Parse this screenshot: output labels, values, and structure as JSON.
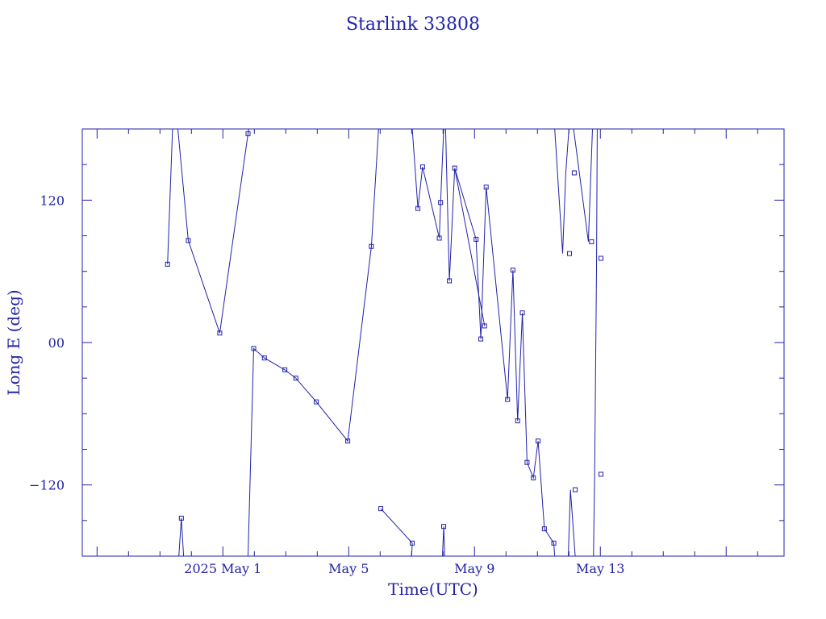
{
  "chart_data": {
    "type": "line",
    "title": "Starlink 33808",
    "xlabel": "Time(UTC)",
    "ylabel": "Long E (deg)",
    "xlim": [
      -4.47,
      17.84
    ],
    "ylim": [
      -180,
      180
    ],
    "x_unit": "days since 2025-05-01 00:00 UTC",
    "x_ticks": [
      {
        "x": 0,
        "label": "2025 May  1"
      },
      {
        "x": 4,
        "label": "May  5"
      },
      {
        "x": 8,
        "label": "May  9"
      },
      {
        "x": 12,
        "label": "May 13"
      }
    ],
    "y_ticks": [
      {
        "y": 120,
        "label": "120"
      },
      {
        "y": 0,
        "label": "00"
      },
      {
        "y": -120,
        "label": "−120"
      }
    ],
    "grid": false,
    "color": "#2222aa",
    "points": [
      [
        -1.76,
        66
      ],
      [
        -1.32,
        -148
      ],
      [
        -1.1,
        86
      ],
      [
        -0.1,
        8
      ],
      [
        0.8,
        176
      ],
      [
        0.98,
        -5
      ],
      [
        1.32,
        -13
      ],
      [
        1.97,
        -23
      ],
      [
        2.32,
        -30
      ],
      [
        2.97,
        -50
      ],
      [
        3.97,
        -83
      ],
      [
        4.72,
        81
      ],
      [
        5.02,
        -140
      ],
      [
        6.02,
        -169
      ],
      [
        6.2,
        113
      ],
      [
        6.35,
        148
      ],
      [
        6.88,
        88
      ],
      [
        6.92,
        118
      ],
      [
        7.02,
        -155
      ],
      [
        7.2,
        52
      ],
      [
        7.37,
        147
      ],
      [
        8.32,
        14
      ],
      [
        8.05,
        87
      ],
      [
        8.2,
        3
      ],
      [
        8.37,
        131
      ],
      [
        9.05,
        -48
      ],
      [
        9.22,
        61
      ],
      [
        9.37,
        -66
      ],
      [
        9.52,
        25
      ],
      [
        9.67,
        -101
      ],
      [
        9.87,
        -114
      ],
      [
        10.02,
        -83
      ],
      [
        10.22,
        -157
      ],
      [
        10.52,
        -169
      ],
      [
        11.02,
        75
      ],
      [
        11.17,
        143
      ],
      [
        11.2,
        -124
      ],
      [
        11.72,
        85
      ],
      [
        12.02,
        -111
      ],
      [
        12.02,
        71
      ]
    ],
    "segments": [
      [
        [
          -1.76,
          66
        ],
        [
          -1.6,
          180
        ]
      ],
      [
        [
          -1.43,
          180
        ],
        [
          -1.1,
          86
        ],
        [
          -0.1,
          8
        ],
        [
          0.8,
          176
        ],
        [
          0.82,
          180
        ]
      ],
      [
        [
          -1.4,
          -180
        ],
        [
          -1.32,
          -148
        ],
        [
          -1.25,
          -180
        ]
      ],
      [
        [
          0.8,
          -180
        ],
        [
          0.98,
          -5
        ],
        [
          1.32,
          -13
        ],
        [
          1.97,
          -23
        ],
        [
          2.32,
          -30
        ],
        [
          2.97,
          -50
        ],
        [
          3.97,
          -83
        ],
        [
          4.72,
          81
        ],
        [
          4.95,
          180
        ]
      ],
      [
        [
          5.02,
          -140
        ],
        [
          6.02,
          -169
        ]
      ],
      [
        [
          6.0,
          -180
        ],
        [
          6.02,
          -169
        ]
      ],
      [
        [
          6.02,
          180
        ],
        [
          6.2,
          113
        ],
        [
          6.35,
          148
        ],
        [
          6.88,
          88
        ],
        [
          6.92,
          118
        ],
        [
          7.02,
          180
        ]
      ],
      [
        [
          6.98,
          -180
        ],
        [
          7.02,
          -155
        ],
        [
          7.05,
          -180
        ]
      ],
      [
        [
          7.08,
          180
        ],
        [
          7.2,
          52
        ],
        [
          7.37,
          147
        ],
        [
          8.32,
          14
        ]
      ],
      [
        [
          7.37,
          147
        ],
        [
          8.05,
          87
        ],
        [
          8.2,
          3
        ],
        [
          8.37,
          131
        ],
        [
          9.05,
          -48
        ],
        [
          9.22,
          61
        ],
        [
          9.37,
          -66
        ],
        [
          9.52,
          25
        ],
        [
          9.67,
          -101
        ],
        [
          9.87,
          -114
        ],
        [
          10.02,
          -83
        ],
        [
          10.22,
          -157
        ],
        [
          10.52,
          -169
        ],
        [
          10.55,
          -180
        ]
      ],
      [
        [
          10.55,
          180
        ],
        [
          10.8,
          75
        ],
        [
          10.9,
          143
        ],
        [
          11.0,
          180
        ]
      ],
      [
        [
          10.98,
          -180
        ],
        [
          11.05,
          -124
        ],
        [
          11.2,
          -180
        ]
      ],
      [
        [
          11.15,
          180
        ],
        [
          11.62,
          85
        ],
        [
          11.75,
          180
        ]
      ],
      [
        [
          11.78,
          -180
        ],
        [
          11.82,
          -111
        ],
        [
          11.88,
          71
        ],
        [
          11.9,
          180
        ]
      ]
    ]
  }
}
